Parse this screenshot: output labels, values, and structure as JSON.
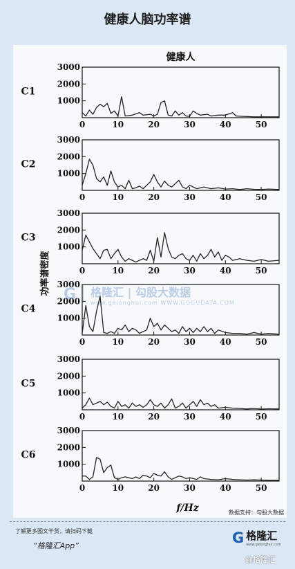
{
  "page": {
    "title": "健康人脑功率谱",
    "watermark_logo": "G",
    "watermark_name": "格隆汇 | 勾股大数据",
    "watermark_url": "www.gelonghui.com   WWW.GOGUDATA.COM",
    "source": "数据支持：勾股大数据",
    "footer_note": "了解更多图文干货，请扫码下载",
    "footer_app": "“格隆汇App”",
    "footer_logo_icon": "G",
    "footer_logo_name": "格隆汇",
    "footer_logo_url": "www.gelonghui.com",
    "corner_mark": "@格隆汇"
  },
  "chart_data": {
    "type": "line",
    "title": "健康人",
    "ylabel": "功率谱密度",
    "xlabel": "f/Hz",
    "xlim": [
      0,
      55
    ],
    "ylim": [
      0,
      3000
    ],
    "xticks": [
      0,
      10,
      20,
      30,
      40,
      50
    ],
    "yticks": [
      1000,
      2000,
      3000
    ],
    "grid": false,
    "panels": [
      {
        "name": "C1",
        "points": [
          [
            0,
            300
          ],
          [
            1,
            100
          ],
          [
            2,
            450
          ],
          [
            3,
            200
          ],
          [
            4,
            600
          ],
          [
            5,
            800
          ],
          [
            6,
            650
          ],
          [
            7,
            850
          ],
          [
            8,
            250
          ],
          [
            9,
            400
          ],
          [
            10,
            100
          ],
          [
            11,
            1250
          ],
          [
            12,
            100
          ],
          [
            14,
            150
          ],
          [
            16,
            300
          ],
          [
            17,
            150
          ],
          [
            19,
            200
          ],
          [
            20,
            100
          ],
          [
            21,
            200
          ],
          [
            22,
            900
          ],
          [
            23,
            1000
          ],
          [
            24,
            150
          ],
          [
            25,
            100
          ],
          [
            26,
            400
          ],
          [
            27,
            150
          ],
          [
            28,
            300
          ],
          [
            29,
            100
          ],
          [
            30,
            80
          ],
          [
            31,
            400
          ],
          [
            32,
            250
          ],
          [
            33,
            150
          ],
          [
            35,
            200
          ],
          [
            36,
            100
          ],
          [
            38,
            150
          ],
          [
            40,
            150
          ],
          [
            42,
            300
          ],
          [
            43,
            100
          ],
          [
            45,
            80
          ],
          [
            48,
            50
          ],
          [
            52,
            50
          ],
          [
            55,
            50
          ]
        ]
      },
      {
        "name": "C2",
        "points": [
          [
            0,
            300
          ],
          [
            1,
            1000
          ],
          [
            2,
            1850
          ],
          [
            3,
            1500
          ],
          [
            4,
            700
          ],
          [
            5,
            500
          ],
          [
            6,
            800
          ],
          [
            7,
            300
          ],
          [
            8,
            1150
          ],
          [
            9,
            500
          ],
          [
            10,
            200
          ],
          [
            11,
            300
          ],
          [
            12,
            100
          ],
          [
            13,
            600
          ],
          [
            14,
            100
          ],
          [
            15,
            150
          ],
          [
            16,
            250
          ],
          [
            17,
            100
          ],
          [
            18,
            300
          ],
          [
            19,
            500
          ],
          [
            20,
            950
          ],
          [
            21,
            500
          ],
          [
            22,
            200
          ],
          [
            23,
            550
          ],
          [
            24,
            300
          ],
          [
            25,
            200
          ],
          [
            26,
            400
          ],
          [
            27,
            600
          ],
          [
            28,
            200
          ],
          [
            29,
            100
          ],
          [
            30,
            300
          ],
          [
            31,
            200
          ],
          [
            32,
            100
          ],
          [
            34,
            200
          ],
          [
            36,
            100
          ],
          [
            38,
            150
          ],
          [
            40,
            80
          ],
          [
            42,
            100
          ],
          [
            44,
            50
          ],
          [
            46,
            100
          ],
          [
            48,
            60
          ],
          [
            50,
            50
          ],
          [
            52,
            80
          ],
          [
            55,
            50
          ]
        ]
      },
      {
        "name": "C3",
        "points": [
          [
            0,
            800
          ],
          [
            1,
            1700
          ],
          [
            2,
            1300
          ],
          [
            3,
            900
          ],
          [
            4,
            600
          ],
          [
            5,
            300
          ],
          [
            6,
            800
          ],
          [
            7,
            850
          ],
          [
            8,
            300
          ],
          [
            9,
            600
          ],
          [
            10,
            850
          ],
          [
            11,
            400
          ],
          [
            12,
            150
          ],
          [
            13,
            300
          ],
          [
            14,
            200
          ],
          [
            15,
            100
          ],
          [
            16,
            200
          ],
          [
            17,
            300
          ],
          [
            18,
            200
          ],
          [
            19,
            800
          ],
          [
            20,
            150
          ],
          [
            21,
            1550
          ],
          [
            22,
            400
          ],
          [
            23,
            1850
          ],
          [
            24,
            900
          ],
          [
            25,
            400
          ],
          [
            26,
            300
          ],
          [
            27,
            500
          ],
          [
            28,
            600
          ],
          [
            29,
            300
          ],
          [
            30,
            200
          ],
          [
            31,
            500
          ],
          [
            32,
            150
          ],
          [
            33,
            600
          ],
          [
            34,
            300
          ],
          [
            35,
            500
          ],
          [
            36,
            850
          ],
          [
            37,
            400
          ],
          [
            38,
            700
          ],
          [
            39,
            200
          ],
          [
            40,
            500
          ],
          [
            41,
            400
          ],
          [
            42,
            200
          ],
          [
            44,
            300
          ],
          [
            46,
            200
          ],
          [
            48,
            150
          ],
          [
            50,
            250
          ],
          [
            52,
            150
          ],
          [
            55,
            200
          ]
        ]
      },
      {
        "name": "C4",
        "points": [
          [
            0,
            100
          ],
          [
            1,
            1750
          ],
          [
            2,
            500
          ],
          [
            3,
            200
          ],
          [
            4,
            1400
          ],
          [
            5,
            2300
          ],
          [
            6,
            150
          ],
          [
            7,
            100
          ],
          [
            8,
            200
          ],
          [
            9,
            100
          ],
          [
            10,
            400
          ],
          [
            11,
            300
          ],
          [
            12,
            600
          ],
          [
            13,
            200
          ],
          [
            14,
            400
          ],
          [
            15,
            300
          ],
          [
            16,
            100
          ],
          [
            17,
            200
          ],
          [
            18,
            300
          ],
          [
            19,
            1000
          ],
          [
            20,
            500
          ],
          [
            21,
            700
          ],
          [
            22,
            300
          ],
          [
            23,
            600
          ],
          [
            24,
            400
          ],
          [
            25,
            200
          ],
          [
            26,
            300
          ],
          [
            27,
            100
          ],
          [
            28,
            500
          ],
          [
            29,
            200
          ],
          [
            30,
            400
          ],
          [
            31,
            150
          ],
          [
            32,
            400
          ],
          [
            33,
            200
          ],
          [
            34,
            500
          ],
          [
            35,
            200
          ],
          [
            36,
            400
          ],
          [
            37,
            100
          ],
          [
            38,
            300
          ],
          [
            40,
            150
          ],
          [
            42,
            100
          ],
          [
            44,
            100
          ],
          [
            46,
            50
          ],
          [
            48,
            150
          ],
          [
            50,
            50
          ],
          [
            52,
            100
          ],
          [
            55,
            50
          ]
        ]
      },
      {
        "name": "C5",
        "points": [
          [
            0,
            100
          ],
          [
            1,
            300
          ],
          [
            2,
            700
          ],
          [
            3,
            300
          ],
          [
            4,
            400
          ],
          [
            5,
            500
          ],
          [
            6,
            300
          ],
          [
            7,
            450
          ],
          [
            8,
            200
          ],
          [
            9,
            100
          ],
          [
            10,
            500
          ],
          [
            11,
            200
          ],
          [
            12,
            300
          ],
          [
            13,
            100
          ],
          [
            14,
            400
          ],
          [
            15,
            200
          ],
          [
            16,
            300
          ],
          [
            17,
            150
          ],
          [
            18,
            300
          ],
          [
            19,
            600
          ],
          [
            20,
            300
          ],
          [
            21,
            200
          ],
          [
            22,
            400
          ],
          [
            23,
            100
          ],
          [
            24,
            300
          ],
          [
            25,
            650
          ],
          [
            26,
            100
          ],
          [
            27,
            200
          ],
          [
            28,
            400
          ],
          [
            29,
            100
          ],
          [
            30,
            300
          ],
          [
            31,
            500
          ],
          [
            32,
            200
          ],
          [
            33,
            600
          ],
          [
            34,
            300
          ],
          [
            35,
            400
          ],
          [
            36,
            200
          ],
          [
            37,
            300
          ],
          [
            38,
            100
          ],
          [
            40,
            150
          ],
          [
            42,
            100
          ],
          [
            44,
            80
          ],
          [
            46,
            50
          ],
          [
            48,
            80
          ],
          [
            50,
            40
          ],
          [
            52,
            60
          ],
          [
            55,
            50
          ]
        ]
      },
      {
        "name": "C6",
        "points": [
          [
            0,
            300
          ],
          [
            1,
            300
          ],
          [
            2,
            100
          ],
          [
            3,
            250
          ],
          [
            4,
            1400
          ],
          [
            5,
            1300
          ],
          [
            6,
            500
          ],
          [
            7,
            800
          ],
          [
            8,
            950
          ],
          [
            9,
            200
          ],
          [
            10,
            100
          ],
          [
            11,
            200
          ],
          [
            12,
            250
          ],
          [
            14,
            150
          ],
          [
            15,
            250
          ],
          [
            16,
            150
          ],
          [
            17,
            350
          ],
          [
            18,
            300
          ],
          [
            19,
            200
          ],
          [
            20,
            450
          ],
          [
            21,
            350
          ],
          [
            22,
            300
          ],
          [
            23,
            550
          ],
          [
            24,
            250
          ],
          [
            25,
            100
          ],
          [
            26,
            200
          ],
          [
            27,
            300
          ],
          [
            28,
            250
          ],
          [
            29,
            150
          ],
          [
            30,
            200
          ],
          [
            31,
            150
          ],
          [
            32,
            100
          ],
          [
            33,
            250
          ],
          [
            34,
            150
          ],
          [
            36,
            100
          ],
          [
            38,
            80
          ],
          [
            40,
            150
          ],
          [
            42,
            100
          ],
          [
            44,
            80
          ],
          [
            46,
            60
          ],
          [
            48,
            80
          ],
          [
            50,
            60
          ],
          [
            52,
            50
          ],
          [
            55,
            50
          ]
        ]
      }
    ]
  }
}
